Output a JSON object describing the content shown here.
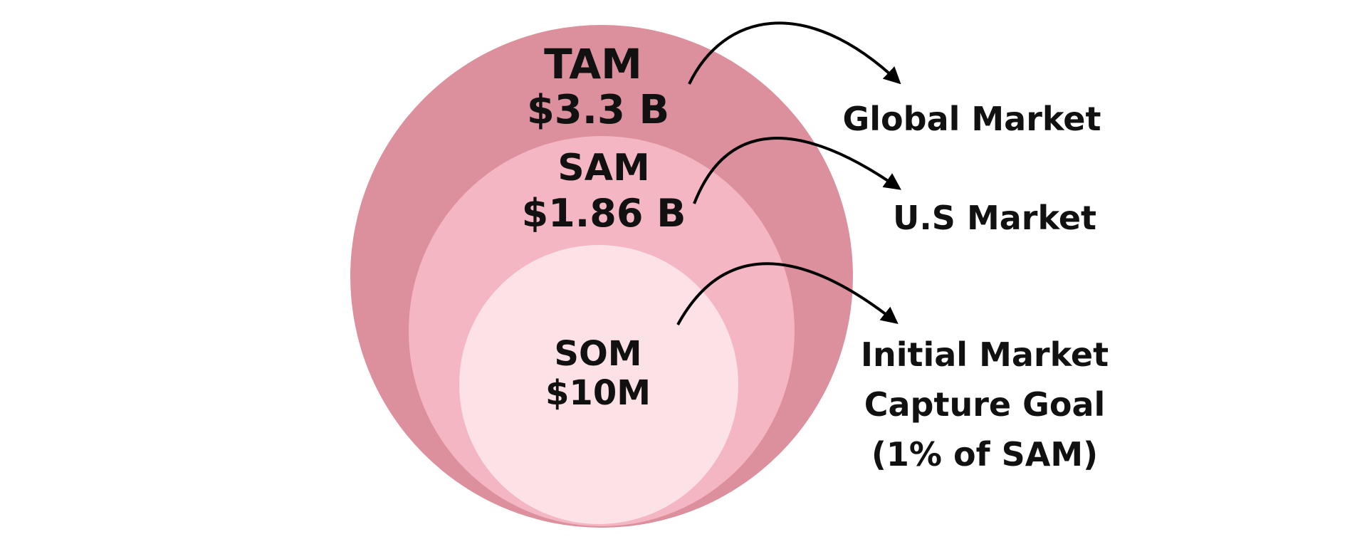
{
  "colors": {
    "outer_circle": "#dc8f9c",
    "middle_circle": "#f4b6c2",
    "inner_circle": "#fce1e7",
    "text": "#111111",
    "arrow": "#000000",
    "background": "#ffffff"
  },
  "tiers": [
    {
      "name": "TAM",
      "value": "$3.3 B",
      "description_lines": [
        "Global Market"
      ]
    },
    {
      "name": "SAM",
      "value": "$1.86 B",
      "description_lines": [
        "U.S Market"
      ]
    },
    {
      "name": "SOM",
      "value": "$10M",
      "description_lines": [
        "Initial Market",
        "Capture Goal",
        "(1% of SAM)"
      ]
    }
  ]
}
